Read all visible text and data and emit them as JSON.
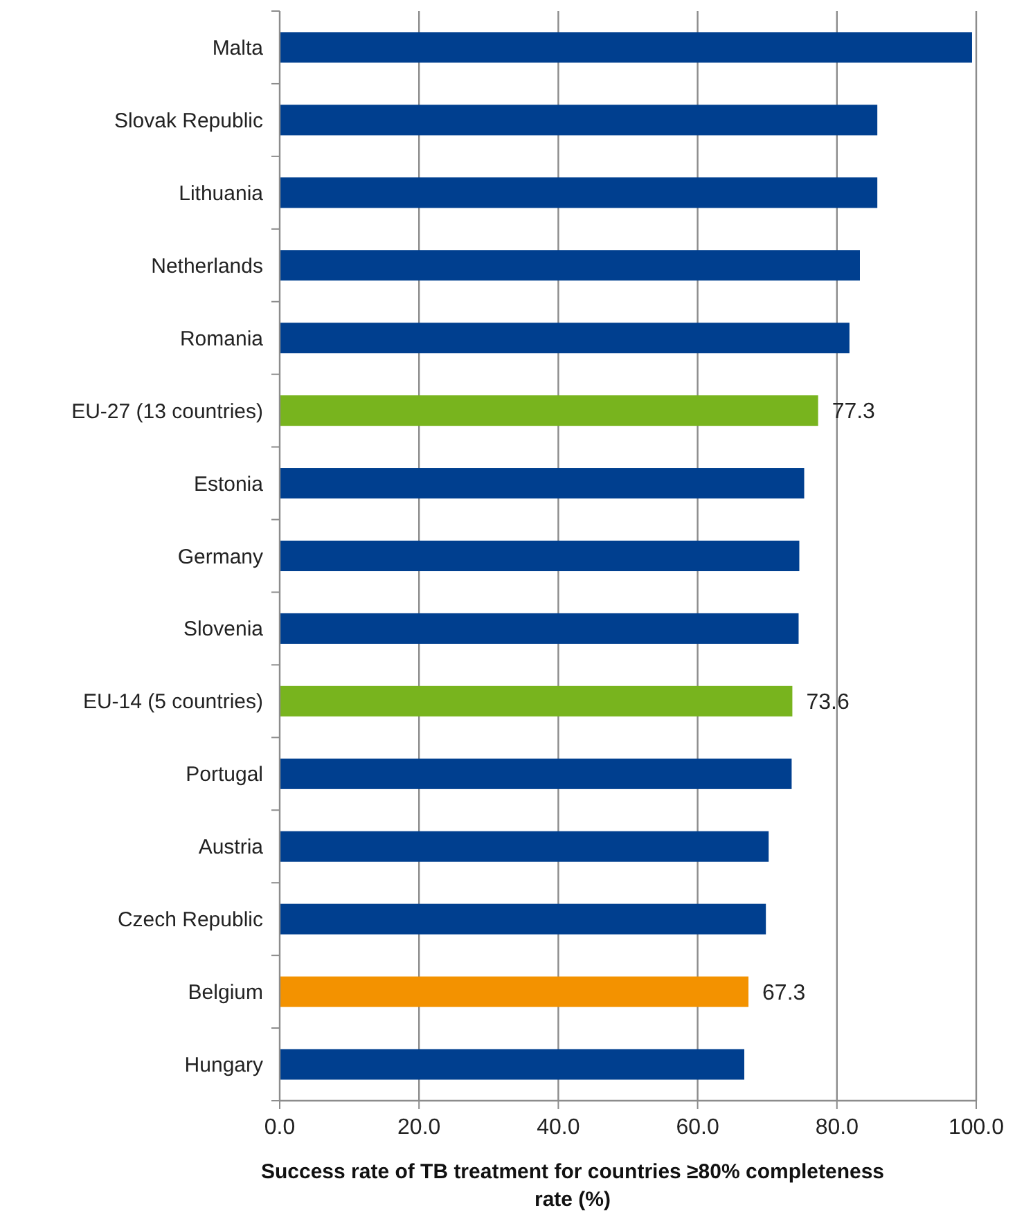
{
  "chart_data": {
    "type": "bar",
    "orientation": "horizontal",
    "xlabel": "Success rate of TB treatment for countries ≥80% completeness rate (%)",
    "categories": [
      "Malta",
      "Slovak Republic",
      "Lithuania",
      "Netherlands",
      "Romania",
      "EU-27 (13 countries)",
      "Estonia",
      "Germany",
      "Slovenia",
      "EU-14 (5 countries)",
      "Portugal",
      "Austria",
      "Czech Republic",
      "Belgium",
      "Hungary"
    ],
    "values": [
      99.4,
      85.8,
      85.8,
      83.3,
      81.8,
      77.3,
      75.3,
      74.6,
      74.5,
      73.6,
      73.5,
      70.2,
      69.8,
      67.3,
      66.7
    ],
    "colors": [
      "#003f8f",
      "#003f8f",
      "#003f8f",
      "#003f8f",
      "#003f8f",
      "#78b41e",
      "#003f8f",
      "#003f8f",
      "#003f8f",
      "#78b41e",
      "#003f8f",
      "#003f8f",
      "#003f8f",
      "#f39200",
      "#003f8f"
    ],
    "value_labels": [
      null,
      null,
      null,
      null,
      null,
      "77.3",
      null,
      null,
      null,
      "73.6",
      null,
      null,
      null,
      "67.3",
      null
    ],
    "xlim": [
      0,
      100
    ],
    "xticks": [
      {
        "value": 0,
        "label": "0.0"
      },
      {
        "value": 20,
        "label": "20.0"
      },
      {
        "value": 40,
        "label": "40.0"
      },
      {
        "value": 60,
        "label": "60.0"
      },
      {
        "value": 80,
        "label": "80.0"
      },
      {
        "value": 100,
        "label": "100.0"
      }
    ],
    "grid": "x"
  }
}
